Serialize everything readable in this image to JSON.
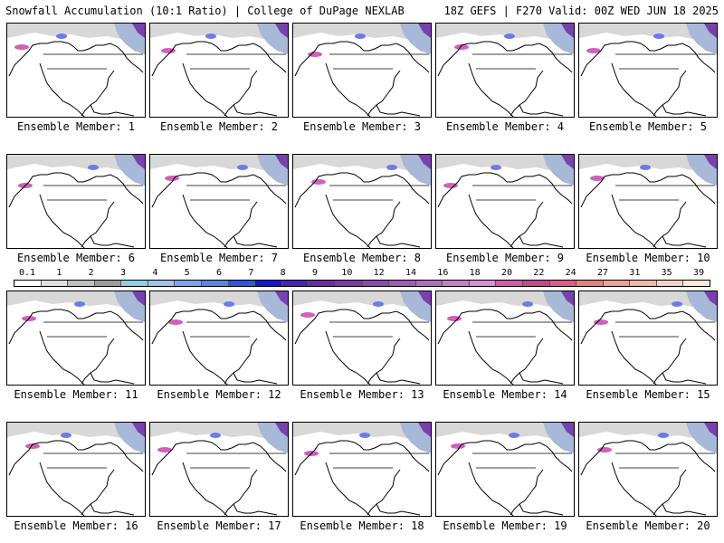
{
  "header": {
    "title_left": "Snowfall Accumulation (10:1 Ratio) | College of DuPage NEXLAB",
    "title_right": "18Z GEFS | F270 Valid: 00Z WED JUN 18 2025"
  },
  "members": [
    {
      "label": "Ensemble Member: 1"
    },
    {
      "label": "Ensemble Member: 2"
    },
    {
      "label": "Ensemble Member: 3"
    },
    {
      "label": "Ensemble Member: 4"
    },
    {
      "label": "Ensemble Member: 5"
    },
    {
      "label": "Ensemble Member: 6"
    },
    {
      "label": "Ensemble Member: 7"
    },
    {
      "label": "Ensemble Member: 8"
    },
    {
      "label": "Ensemble Member: 9"
    },
    {
      "label": "Ensemble Member: 10"
    },
    {
      "label": "Ensemble Member: 11"
    },
    {
      "label": "Ensemble Member: 12"
    },
    {
      "label": "Ensemble Member: 13"
    },
    {
      "label": "Ensemble Member: 14"
    },
    {
      "label": "Ensemble Member: 15"
    },
    {
      "label": "Ensemble Member: 16"
    },
    {
      "label": "Ensemble Member: 17"
    },
    {
      "label": "Ensemble Member: 18"
    },
    {
      "label": "Ensemble Member: 19"
    },
    {
      "label": "Ensemble Member: 20"
    }
  ],
  "legend": {
    "tick_labels": [
      "0.1",
      "1",
      "2",
      "3",
      "4",
      "5",
      "6",
      "7",
      "8",
      "9",
      "10",
      "12",
      "14",
      "16",
      "18",
      "20",
      "22",
      "24",
      "27",
      "31",
      "35",
      "39"
    ],
    "colors": [
      "#ffffff",
      "#e0e0e0",
      "#c0c0c0",
      "#9c9c9c",
      "#8ad0ea",
      "#9ec2f2",
      "#7aa6ee",
      "#5a86ea",
      "#2a56e6",
      "#1414d8",
      "#4a20b8",
      "#6a2aa6",
      "#7e3aa8",
      "#9048b0",
      "#a25ab8",
      "#b46cc0",
      "#c87ecc",
      "#d890d6",
      "#d85aa8",
      "#c8488e",
      "#e25a8e",
      "#e87f7f",
      "#eda296",
      "#f0b8a8",
      "#f5d3c0",
      "#fae8d8"
    ]
  }
}
